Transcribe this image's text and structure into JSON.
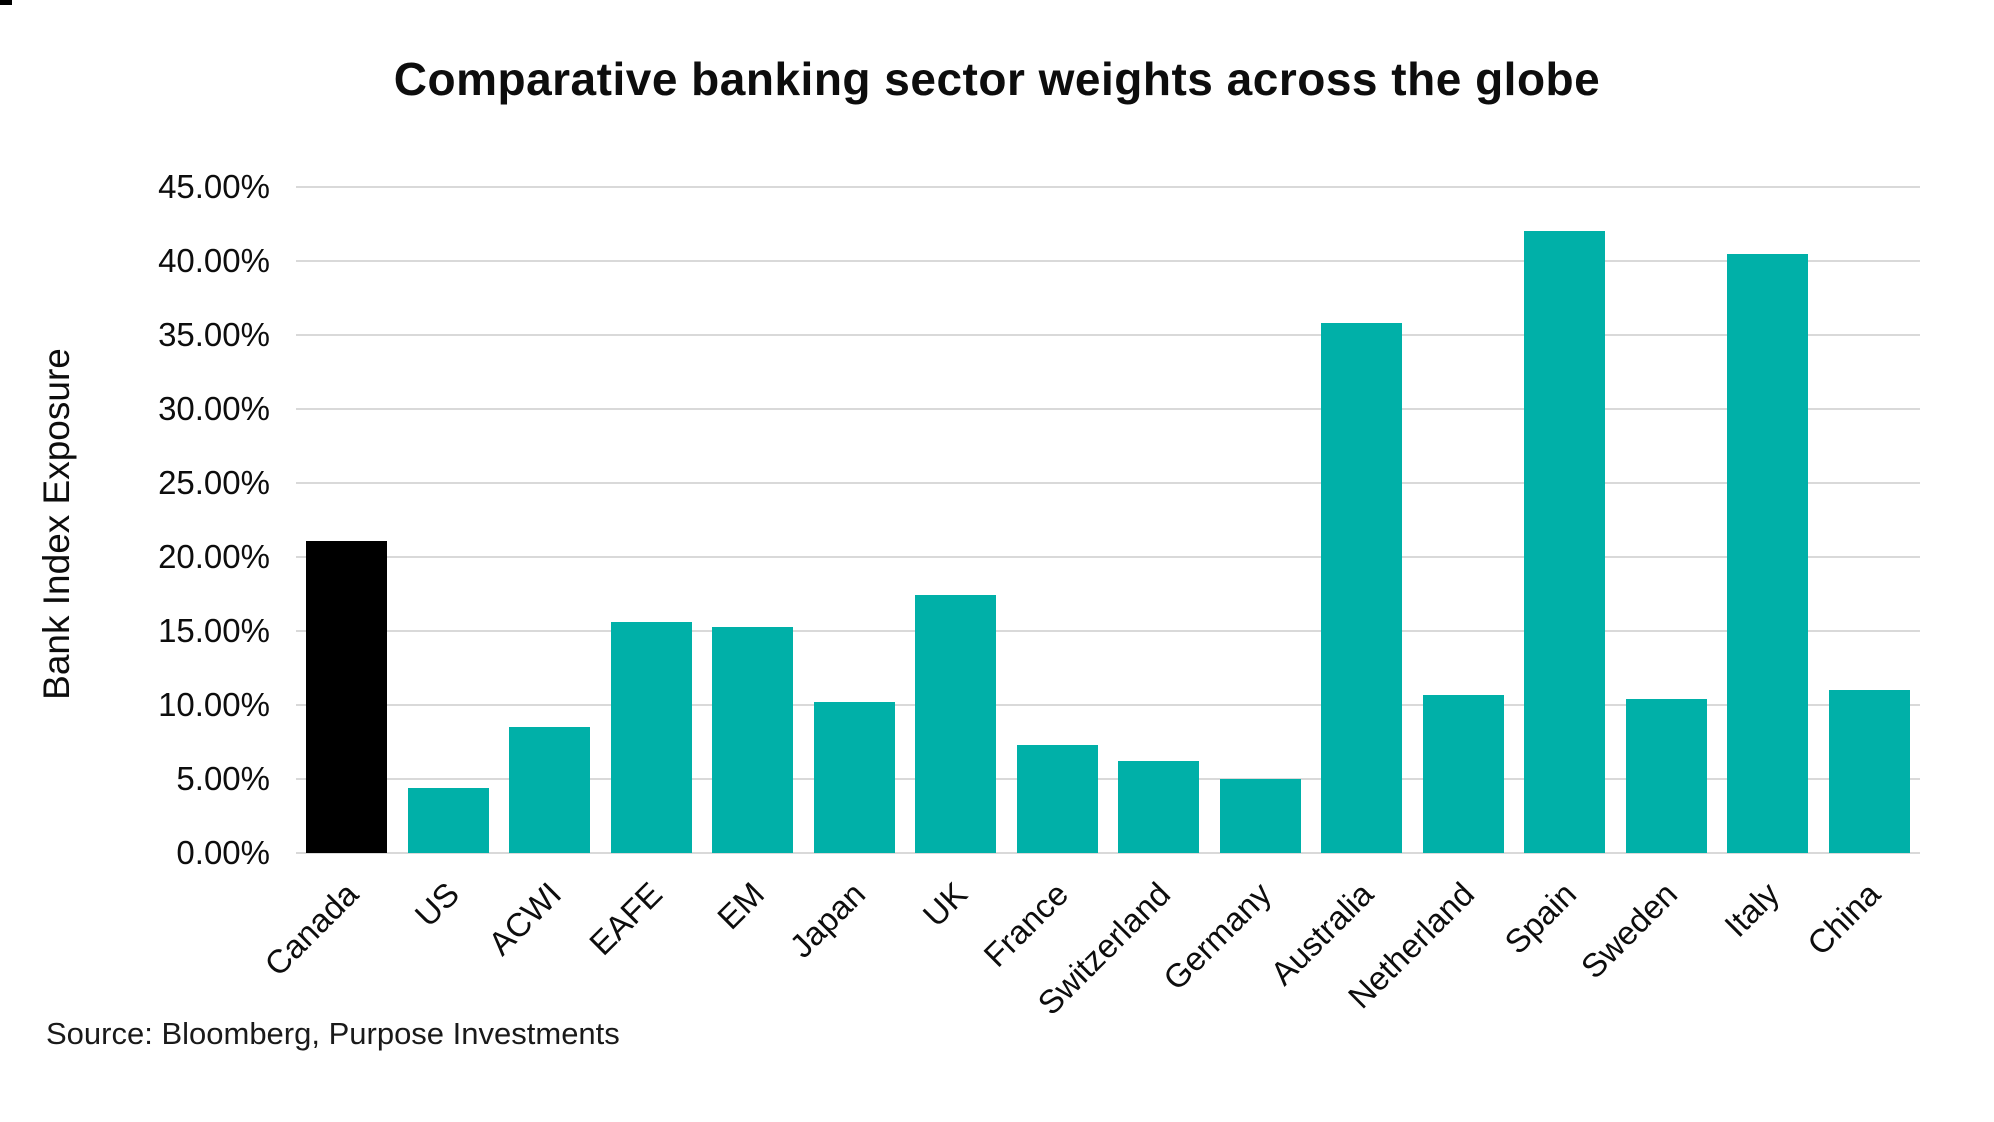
{
  "title": "Comparative banking sector weights across the globe",
  "source_note": "Source: Bloomberg, Purpose Investments",
  "colors": {
    "teal": "#00b0a8",
    "highlight_black": "#000000",
    "gridline": "#d9d9d9",
    "text": "#0d0d0d"
  },
  "chart_data": {
    "type": "bar",
    "title": "Comparative banking sector weights across the globe",
    "xlabel": "",
    "ylabel": "Bank Index Exposure",
    "ylim": [
      0,
      45
    ],
    "grid": true,
    "legend": false,
    "categories": [
      "Canada",
      "US",
      "ACWI",
      "EAFE",
      "EM",
      "Japan",
      "UK",
      "France",
      "Switzerland",
      "Germany",
      "Australia",
      "Netherland",
      "Spain",
      "Sweden",
      "Italy",
      "China"
    ],
    "values": [
      21.1,
      4.4,
      8.5,
      15.6,
      15.3,
      10.2,
      17.4,
      7.3,
      6.2,
      5.0,
      35.8,
      10.7,
      42.0,
      10.4,
      40.5,
      11.0
    ],
    "bar_colors": [
      "#000000",
      "#00b0a8",
      "#00b0a8",
      "#00b0a8",
      "#00b0a8",
      "#00b0a8",
      "#00b0a8",
      "#00b0a8",
      "#00b0a8",
      "#00b0a8",
      "#00b0a8",
      "#00b0a8",
      "#00b0a8",
      "#00b0a8",
      "#00b0a8",
      "#00b0a8"
    ],
    "yticks": [
      {
        "value": 0,
        "label": "0.00%"
      },
      {
        "value": 5,
        "label": "5.00%"
      },
      {
        "value": 10,
        "label": "10.00%"
      },
      {
        "value": 15,
        "label": "15.00%"
      },
      {
        "value": 20,
        "label": "20.00%"
      },
      {
        "value": 25,
        "label": "25.00%"
      },
      {
        "value": 30,
        "label": "30.00%"
      },
      {
        "value": 35,
        "label": "35.00%"
      },
      {
        "value": 40,
        "label": "40.00%"
      },
      {
        "value": 45,
        "label": "45.00%"
      }
    ]
  }
}
